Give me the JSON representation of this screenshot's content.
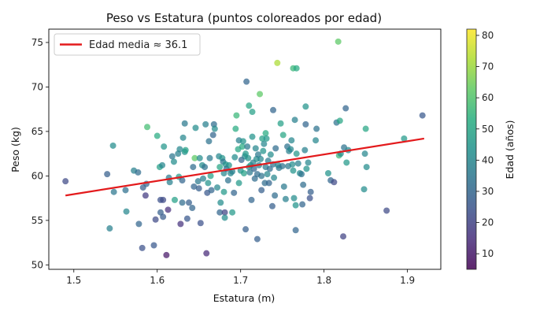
{
  "chart_data": {
    "type": "scatter",
    "title": "Peso vs Estatura (puntos coloreados por edad)",
    "xlabel": "Estatura (m)",
    "ylabel": "Peso (kg)",
    "xlim": [
      1.47,
      1.94
    ],
    "ylim": [
      49.5,
      76.5
    ],
    "xticks": [
      "1.5",
      "1.6",
      "1.7",
      "1.8",
      "1.9"
    ],
    "yticks": [
      "50",
      "55",
      "60",
      "65",
      "70",
      "75"
    ],
    "grid": false,
    "legend_position": "upper-left",
    "trend": {
      "label": "Edad media ≈ 36.1",
      "color": "#e31a1c",
      "x": [
        1.49,
        1.92
      ],
      "y": [
        57.8,
        64.2
      ]
    },
    "colorbar": {
      "label": "Edad (años)",
      "min": 5,
      "max": 82,
      "ticks": [
        "10",
        "20",
        "30",
        "40",
        "50",
        "60",
        "70",
        "80"
      ],
      "colormap": "viridis"
    },
    "points": [
      [
        1.49,
        59.4,
        22
      ],
      [
        1.54,
        60.2,
        28
      ],
      [
        1.543,
        54.1,
        38
      ],
      [
        1.547,
        63.4,
        42
      ],
      [
        1.548,
        58.2,
        35
      ],
      [
        1.563,
        56.0,
        40
      ],
      [
        1.562,
        58.4,
        33
      ],
      [
        1.572,
        60.6,
        38
      ],
      [
        1.577,
        60.4,
        32
      ],
      [
        1.578,
        54.6,
        30
      ],
      [
        1.582,
        51.9,
        24
      ],
      [
        1.583,
        58.7,
        28
      ],
      [
        1.586,
        57.8,
        18
      ],
      [
        1.587,
        59.1,
        30
      ],
      [
        1.588,
        65.5,
        58
      ],
      [
        1.596,
        52.2,
        26
      ],
      [
        1.598,
        55.1,
        22
      ],
      [
        1.6,
        64.5,
        52
      ],
      [
        1.603,
        61.0,
        48
      ],
      [
        1.604,
        57.3,
        24
      ],
      [
        1.604,
        55.9,
        28
      ],
      [
        1.606,
        61.2,
        40
      ],
      [
        1.607,
        57.3,
        22
      ],
      [
        1.607,
        55.4,
        27
      ],
      [
        1.608,
        63.3,
        45
      ],
      [
        1.611,
        51.1,
        10
      ],
      [
        1.613,
        56.2,
        15
      ],
      [
        1.614,
        59.8,
        36
      ],
      [
        1.615,
        59.3,
        38
      ],
      [
        1.618,
        62.2,
        35
      ],
      [
        1.62,
        61.6,
        42
      ],
      [
        1.621,
        57.3,
        48
      ],
      [
        1.625,
        62.5,
        38
      ],
      [
        1.626,
        59.9,
        46
      ],
      [
        1.627,
        63.0,
        40
      ],
      [
        1.628,
        54.6,
        16
      ],
      [
        1.63,
        57.0,
        32
      ],
      [
        1.63,
        59.5,
        30
      ],
      [
        1.631,
        64.3,
        40
      ],
      [
        1.633,
        62.7,
        44
      ],
      [
        1.633,
        65.9,
        36
      ],
      [
        1.634,
        62.9,
        48
      ],
      [
        1.636,
        55.2,
        26
      ],
      [
        1.638,
        57.0,
        28
      ],
      [
        1.642,
        56.4,
        30
      ],
      [
        1.643,
        61.0,
        32
      ],
      [
        1.644,
        58.8,
        30
      ],
      [
        1.645,
        62.0,
        62
      ],
      [
        1.646,
        65.4,
        42
      ],
      [
        1.649,
        59.4,
        36
      ],
      [
        1.65,
        58.6,
        28
      ],
      [
        1.651,
        62.0,
        42
      ],
      [
        1.652,
        54.7,
        24
      ],
      [
        1.654,
        61.2,
        42
      ],
      [
        1.655,
        59.7,
        38
      ],
      [
        1.657,
        61.0,
        34
      ],
      [
        1.658,
        65.8,
        38
      ],
      [
        1.659,
        51.3,
        14
      ],
      [
        1.66,
        58.1,
        26
      ],
      [
        1.661,
        59.2,
        44
      ],
      [
        1.662,
        63.9,
        34
      ],
      [
        1.663,
        62.0,
        36
      ],
      [
        1.664,
        60.0,
        48
      ],
      [
        1.665,
        58.4,
        30
      ],
      [
        1.667,
        64.6,
        30
      ],
      [
        1.668,
        65.8,
        32
      ],
      [
        1.669,
        65.3,
        42
      ],
      [
        1.672,
        58.7,
        40
      ],
      [
        1.674,
        62.2,
        40
      ],
      [
        1.675,
        61.0,
        50
      ],
      [
        1.675,
        55.9,
        30
      ],
      [
        1.676,
        57.0,
        42
      ],
      [
        1.678,
        62.0,
        44
      ],
      [
        1.679,
        61.6,
        35
      ],
      [
        1.68,
        60.3,
        40
      ],
      [
        1.68,
        58.2,
        46
      ],
      [
        1.681,
        55.9,
        20
      ],
      [
        1.681,
        55.3,
        42
      ],
      [
        1.682,
        61.3,
        44
      ],
      [
        1.683,
        60.8,
        30
      ],
      [
        1.685,
        59.5,
        34
      ],
      [
        1.686,
        61.2,
        44
      ],
      [
        1.688,
        60.3,
        40
      ],
      [
        1.69,
        55.9,
        46
      ],
      [
        1.69,
        60.5,
        38
      ],
      [
        1.692,
        58.1,
        30
      ],
      [
        1.693,
        62.1,
        42
      ],
      [
        1.694,
        65.3,
        52
      ],
      [
        1.695,
        66.8,
        56
      ],
      [
        1.697,
        63.0,
        50
      ],
      [
        1.698,
        59.2,
        46
      ],
      [
        1.698,
        64.0,
        38
      ],
      [
        1.7,
        60.6,
        44
      ],
      [
        1.701,
        61.8,
        30
      ],
      [
        1.702,
        63.3,
        52
      ],
      [
        1.703,
        63.9,
        44
      ],
      [
        1.704,
        60.3,
        48
      ],
      [
        1.705,
        62.2,
        40
      ],
      [
        1.706,
        62.5,
        46
      ],
      [
        1.706,
        54.0,
        28
      ],
      [
        1.707,
        70.6,
        30
      ],
      [
        1.708,
        63.3,
        36
      ],
      [
        1.709,
        62.0,
        44
      ],
      [
        1.71,
        61.0,
        42
      ],
      [
        1.71,
        67.9,
        50
      ],
      [
        1.711,
        60.4,
        36
      ],
      [
        1.712,
        61.2,
        46
      ],
      [
        1.713,
        57.3,
        30
      ],
      [
        1.714,
        64.4,
        44
      ],
      [
        1.714,
        67.2,
        48
      ],
      [
        1.715,
        61.5,
        38
      ],
      [
        1.716,
        60.8,
        30
      ],
      [
        1.717,
        59.7,
        32
      ],
      [
        1.718,
        63.1,
        40
      ],
      [
        1.719,
        61.9,
        42
      ],
      [
        1.72,
        52.9,
        28
      ],
      [
        1.72,
        60.2,
        32
      ],
      [
        1.721,
        62.4,
        36
      ],
      [
        1.722,
        61.2,
        38
      ],
      [
        1.723,
        69.2,
        62
      ],
      [
        1.724,
        61.9,
        40
      ],
      [
        1.725,
        60.0,
        34
      ],
      [
        1.725,
        58.4,
        28
      ],
      [
        1.726,
        64.2,
        48
      ],
      [
        1.727,
        62.8,
        44
      ],
      [
        1.728,
        63.6,
        40
      ],
      [
        1.729,
        59.2,
        32
      ],
      [
        1.73,
        64.8,
        52
      ],
      [
        1.73,
        61.0,
        36
      ],
      [
        1.731,
        64.2,
        46
      ],
      [
        1.732,
        60.2,
        40
      ],
      [
        1.733,
        61.7,
        36
      ],
      [
        1.734,
        59.2,
        30
      ],
      [
        1.735,
        60.8,
        32
      ],
      [
        1.736,
        62.4,
        42
      ],
      [
        1.738,
        56.6,
        28
      ],
      [
        1.739,
        61.3,
        34
      ],
      [
        1.739,
        67.4,
        30
      ],
      [
        1.74,
        59.8,
        40
      ],
      [
        1.741,
        57.8,
        32
      ],
      [
        1.742,
        63.1,
        32
      ],
      [
        1.744,
        72.7,
        72
      ],
      [
        1.745,
        61.2,
        40
      ],
      [
        1.746,
        60.9,
        36
      ],
      [
        1.748,
        65.9,
        48
      ],
      [
        1.75,
        61.1,
        34
      ],
      [
        1.751,
        64.6,
        50
      ],
      [
        1.752,
        58.8,
        36
      ],
      [
        1.754,
        57.4,
        38
      ],
      [
        1.756,
        63.3,
        34
      ],
      [
        1.757,
        61.1,
        36
      ],
      [
        1.758,
        62.8,
        38
      ],
      [
        1.76,
        63.0,
        40
      ],
      [
        1.761,
        64.0,
        40
      ],
      [
        1.762,
        61.3,
        42
      ],
      [
        1.763,
        72.1,
        56
      ],
      [
        1.763,
        60.6,
        44
      ],
      [
        1.764,
        57.5,
        42
      ],
      [
        1.765,
        66.3,
        38
      ],
      [
        1.766,
        53.9,
        30
      ],
      [
        1.766,
        56.7,
        44
      ],
      [
        1.767,
        62.5,
        46
      ],
      [
        1.767,
        72.1,
        52
      ],
      [
        1.769,
        61.4,
        38
      ],
      [
        1.771,
        60.3,
        42
      ],
      [
        1.773,
        60.2,
        34
      ],
      [
        1.774,
        56.8,
        30
      ],
      [
        1.775,
        59.0,
        32
      ],
      [
        1.777,
        62.9,
        38
      ],
      [
        1.778,
        67.8,
        44
      ],
      [
        1.778,
        65.8,
        30
      ],
      [
        1.779,
        60.8,
        44
      ],
      [
        1.781,
        61.5,
        40
      ],
      [
        1.783,
        57.5,
        24
      ],
      [
        1.784,
        58.2,
        28
      ],
      [
        1.791,
        65.3,
        34
      ],
      [
        1.79,
        64.0,
        40
      ],
      [
        1.805,
        60.3,
        44
      ],
      [
        1.808,
        59.5,
        30
      ],
      [
        1.812,
        59.3,
        22
      ],
      [
        1.815,
        66.0,
        34
      ],
      [
        1.817,
        75.1,
        62
      ],
      [
        1.818,
        62.3,
        56
      ],
      [
        1.819,
        66.2,
        50
      ],
      [
        1.82,
        62.5,
        42
      ],
      [
        1.823,
        53.2,
        20
      ],
      [
        1.824,
        63.2,
        34
      ],
      [
        1.826,
        67.6,
        30
      ],
      [
        1.827,
        61.5,
        46
      ],
      [
        1.829,
        62.9,
        40
      ],
      [
        1.848,
        58.5,
        42
      ],
      [
        1.85,
        65.3,
        50
      ],
      [
        1.851,
        61.0,
        42
      ],
      [
        1.849,
        62.5,
        40
      ],
      [
        1.875,
        56.1,
        22
      ],
      [
        1.896,
        64.2,
        46
      ],
      [
        1.918,
        66.8,
        26
      ]
    ]
  }
}
